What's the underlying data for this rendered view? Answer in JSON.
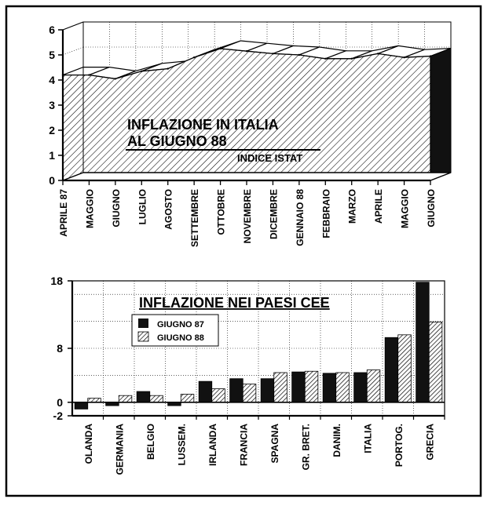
{
  "chart_data": [
    {
      "type": "area",
      "title_lines": [
        "INFLAZIONE IN ITALIA",
        "AL GIUGNO 88"
      ],
      "subtitle": "INDICE ISTAT",
      "xlabel": "",
      "ylabel": "",
      "ylim": [
        0,
        6
      ],
      "yticks": [
        "0",
        "1",
        "2",
        "3",
        "4",
        "5",
        "6"
      ],
      "grid": true,
      "categories": [
        "APRILE 87",
        "MAGGIO",
        "GIUGNO",
        "LUGLIO",
        "AGOSTO",
        "SETTEMBRE",
        "OTTOBRE",
        "NOVEMBRE",
        "DICEMBRE",
        "GENNAIO 88",
        "FEBBRAIO",
        "MARZO",
        "APRILE",
        "MAGGIO",
        "GIUGNO"
      ],
      "values": [
        4.2,
        4.2,
        4.05,
        4.35,
        4.45,
        4.9,
        5.25,
        5.15,
        5.05,
        5.0,
        4.85,
        4.85,
        5.05,
        4.9,
        4.95
      ],
      "colors": {
        "fill": "hatch",
        "top": "#ffffff",
        "end": "#111111"
      }
    },
    {
      "type": "bar",
      "title": "INFLAZIONE NEI PAESI CEE",
      "xlabel": "",
      "ylabel": "",
      "ylim": [
        -2,
        18
      ],
      "yticks": [
        "-2",
        "0",
        "8",
        "18"
      ],
      "grid": true,
      "legend_position": "top-left",
      "categories": [
        "OLANDA",
        "GERMANIA",
        "BELGIO",
        "LUSSEM.",
        "IRLANDA",
        "FRANCIA",
        "SPAGNA",
        "GR. BRET.",
        "DANIM.",
        "ITALIA",
        "PORTOG.",
        "GRECIA"
      ],
      "series": [
        {
          "name": "GIUGNO 87",
          "values": [
            -1.0,
            -0.5,
            1.6,
            -0.5,
            3.1,
            3.5,
            3.5,
            4.5,
            4.3,
            4.4,
            9.6,
            17.8
          ],
          "color": "#111111"
        },
        {
          "name": "GIUGNO 88",
          "values": [
            0.6,
            1.0,
            1.0,
            1.2,
            2.0,
            2.7,
            4.4,
            4.6,
            4.4,
            4.8,
            10.0,
            11.9
          ],
          "color": "hatch"
        }
      ]
    }
  ]
}
